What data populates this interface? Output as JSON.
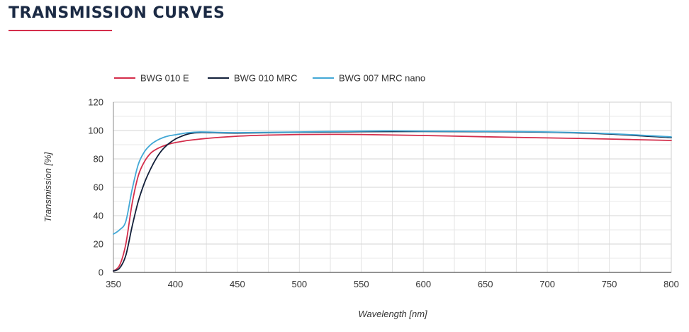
{
  "header": {
    "title": "TRANSMISSION CURVES"
  },
  "chart_data": {
    "type": "line",
    "xlabel": "Wavelength [nm]",
    "ylabel": "Transmission [%]",
    "xlim": [
      350,
      800
    ],
    "ylim": [
      0,
      120
    ],
    "xticks": [
      350,
      400,
      450,
      500,
      550,
      600,
      650,
      700,
      750,
      800
    ],
    "yticks": [
      0,
      20,
      40,
      60,
      80,
      100,
      120
    ],
    "grid": true,
    "legend_position": "top-left",
    "series": [
      {
        "name": "BWG 010 E",
        "color": "#d42e4b",
        "x": [
          350,
          355,
          360,
          365,
          370,
          375,
          380,
          385,
          390,
          395,
          400,
          410,
          420,
          430,
          450,
          475,
          500,
          525,
          550,
          600,
          650,
          700,
          750,
          800
        ],
        "y": [
          1,
          5,
          20,
          48,
          68,
          78,
          84,
          87,
          89,
          90.5,
          91.5,
          93,
          94,
          94.8,
          96,
          96.8,
          97.2,
          97.3,
          97.2,
          96.5,
          95.6,
          94.8,
          94,
          93
        ]
      },
      {
        "name": "BWG 010 MRC",
        "color": "#13203a",
        "x": [
          350,
          355,
          360,
          365,
          370,
          375,
          380,
          385,
          390,
          395,
          400,
          405,
          410,
          415,
          420,
          430,
          450,
          500,
          550,
          600,
          650,
          700,
          750,
          800
        ],
        "y": [
          1,
          3,
          12,
          32,
          50,
          63,
          73,
          81,
          87,
          91,
          94,
          96,
          97.5,
          98.3,
          98.6,
          98.5,
          98.2,
          98.8,
          99.2,
          99.3,
          99.2,
          98.8,
          97.5,
          95
        ]
      },
      {
        "name": "BWG 007 MRC nano",
        "color": "#43a8d6",
        "x": [
          350,
          355,
          360,
          365,
          370,
          375,
          380,
          385,
          390,
          395,
          400,
          410,
          420,
          430,
          450,
          500,
          550,
          575,
          600,
          650,
          700,
          750,
          800
        ],
        "y": [
          27,
          30,
          36,
          58,
          76,
          85,
          90,
          93,
          95,
          96.3,
          97,
          98.4,
          99,
          98.8,
          98.5,
          99,
          99.6,
          99.8,
          99.6,
          99.4,
          99,
          97.8,
          95.5
        ]
      }
    ]
  }
}
